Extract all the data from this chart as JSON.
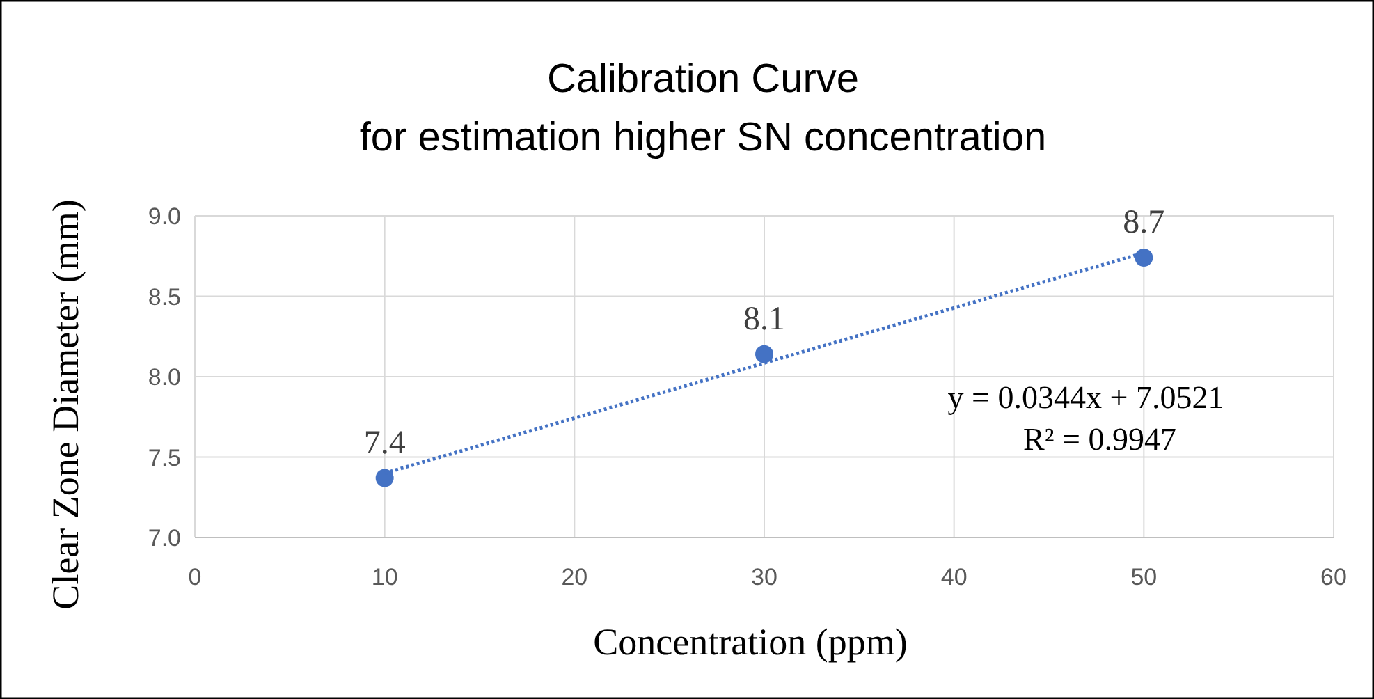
{
  "chart_data": {
    "type": "scatter",
    "title": "Calibration Curve",
    "subtitle": "for estimation higher SN concentration",
    "xlabel": "Concentration (ppm)",
    "ylabel": "Clear Zone Diameter (mm)",
    "xlim": [
      0,
      60
    ],
    "xticks": [
      0,
      10,
      20,
      30,
      40,
      50,
      60
    ],
    "ylim": [
      7,
      9
    ],
    "yticks": [
      {
        "value": 7,
        "label": "7.0"
      },
      {
        "value": 7.5,
        "label": "7.5"
      },
      {
        "value": 8,
        "label": "8.0"
      },
      {
        "value": 8.5,
        "label": "8.5"
      },
      {
        "value": 9,
        "label": "9.0"
      }
    ],
    "grid": true,
    "series": [
      {
        "color": "#4472c4",
        "x": [
          10,
          30,
          50
        ],
        "values": [
          7.37,
          8.14,
          8.74
        ],
        "value_labels": [
          "7.4",
          "8.1",
          "8.7"
        ],
        "marker": "circle"
      },
      {
        "type": "line",
        "color": "#4472c4",
        "x": [
          10,
          50
        ],
        "values": [
          7.4,
          8.77
        ],
        "line_style": "dotted",
        "marker": "none"
      }
    ],
    "annotations": [
      "y = 0.0344x + 7.0521",
      "R² = 0.9947"
    ]
  }
}
